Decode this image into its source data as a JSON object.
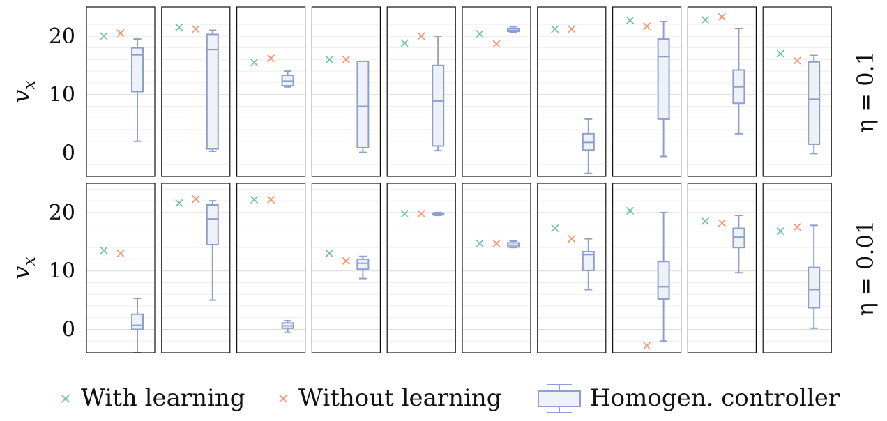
{
  "chart_data": {
    "type": "box",
    "ylim": [
      -4,
      25
    ],
    "yticks": [
      0,
      10,
      20
    ],
    "ylabel": "v",
    "ylabel_sub": "x",
    "grid": true,
    "legend_position": "bottom",
    "colors": {
      "with": "#66c2a5",
      "without": "#fc8d62",
      "box": "#8da0cb",
      "box_fill": "#eef1f8"
    },
    "legend": [
      "With learning",
      "Without learning",
      "Homogen. controller"
    ],
    "rows": [
      {
        "label": "η = 0.1",
        "panels": [
          {
            "with": 20.0,
            "without": 20.5,
            "box": {
              "min": 2.0,
              "q1": 10.5,
              "median": 16.8,
              "q3": 18.0,
              "max": 19.5
            }
          },
          {
            "with": 21.5,
            "without": 21.2,
            "box": {
              "min": 0.3,
              "q1": 0.7,
              "median": 17.7,
              "q3": 20.3,
              "max": 21.0
            }
          },
          {
            "with": 15.5,
            "without": 16.2,
            "box": {
              "min": 11.3,
              "q1": 11.5,
              "median": 12.3,
              "q3": 13.3,
              "max": 14.0
            }
          },
          {
            "with": 16.0,
            "without": 16.0,
            "box": {
              "min": 0.1,
              "q1": 0.9,
              "median": 8.0,
              "q3": 15.7,
              "max": 15.7
            }
          },
          {
            "with": 18.8,
            "without": 20.0,
            "box": {
              "min": 0.4,
              "q1": 1.2,
              "median": 8.9,
              "q3": 15.0,
              "max": 20.0
            }
          },
          {
            "with": 20.4,
            "without": 18.7,
            "box": {
              "min": 20.6,
              "q1": 20.8,
              "median": 21.0,
              "q3": 21.3,
              "max": 21.6
            }
          },
          {
            "with": 21.2,
            "without": 21.2,
            "box": {
              "min": -3.5,
              "q1": 0.5,
              "median": 1.8,
              "q3": 3.3,
              "max": 5.8
            }
          },
          {
            "with": 22.7,
            "without": 21.7,
            "box": {
              "min": -0.6,
              "q1": 5.8,
              "median": 16.5,
              "q3": 19.5,
              "max": 22.5
            }
          },
          {
            "with": 22.8,
            "without": 23.3,
            "box": {
              "min": 3.3,
              "q1": 8.5,
              "median": 11.3,
              "q3": 14.2,
              "max": 21.3
            }
          },
          {
            "with": 17.0,
            "without": 15.8,
            "box": {
              "min": -0.1,
              "q1": 1.5,
              "median": 9.2,
              "q3": 15.6,
              "max": 16.7
            }
          }
        ]
      },
      {
        "label": "η = 0.01",
        "panels": [
          {
            "with": 13.5,
            "without": 13.0,
            "box": {
              "min": -4.0,
              "q1": 0.0,
              "median": 0.7,
              "q3": 2.6,
              "max": 5.3
            }
          },
          {
            "with": 21.6,
            "without": 22.3,
            "box": {
              "min": 5.0,
              "q1": 14.5,
              "median": 18.9,
              "q3": 21.3,
              "max": 22.0
            }
          },
          {
            "with": 22.2,
            "without": 22.2,
            "box": {
              "min": -0.5,
              "q1": 0.2,
              "median": 0.6,
              "q3": 1.1,
              "max": 1.5
            }
          },
          {
            "with": 13.0,
            "without": 11.7,
            "box": {
              "min": 8.7,
              "q1": 10.3,
              "median": 11.3,
              "q3": 12.0,
              "max": 12.5
            }
          },
          {
            "with": 19.8,
            "without": 19.8,
            "box": {
              "min": 19.5,
              "q1": 19.6,
              "median": 19.8,
              "q3": 19.9,
              "max": 20.0
            }
          },
          {
            "with": 14.7,
            "without": 14.7,
            "box": {
              "min": 14.0,
              "q1": 14.1,
              "median": 14.4,
              "q3": 14.8,
              "max": 15.1
            }
          },
          {
            "with": 17.3,
            "without": 15.5,
            "box": {
              "min": 6.8,
              "q1": 10.1,
              "median": 12.8,
              "q3": 13.3,
              "max": 15.5
            }
          },
          {
            "with": 20.3,
            "without": -2.8,
            "box": {
              "min": -2.0,
              "q1": 5.2,
              "median": 7.3,
              "q3": 11.6,
              "max": 20.0
            }
          },
          {
            "with": 18.5,
            "without": 18.2,
            "box": {
              "min": 9.7,
              "q1": 14.0,
              "median": 15.8,
              "q3": 17.3,
              "max": 19.5
            }
          },
          {
            "with": 16.8,
            "without": 17.5,
            "box": {
              "min": 0.2,
              "q1": 3.7,
              "median": 6.8,
              "q3": 10.6,
              "max": 17.8
            }
          }
        ]
      }
    ]
  }
}
